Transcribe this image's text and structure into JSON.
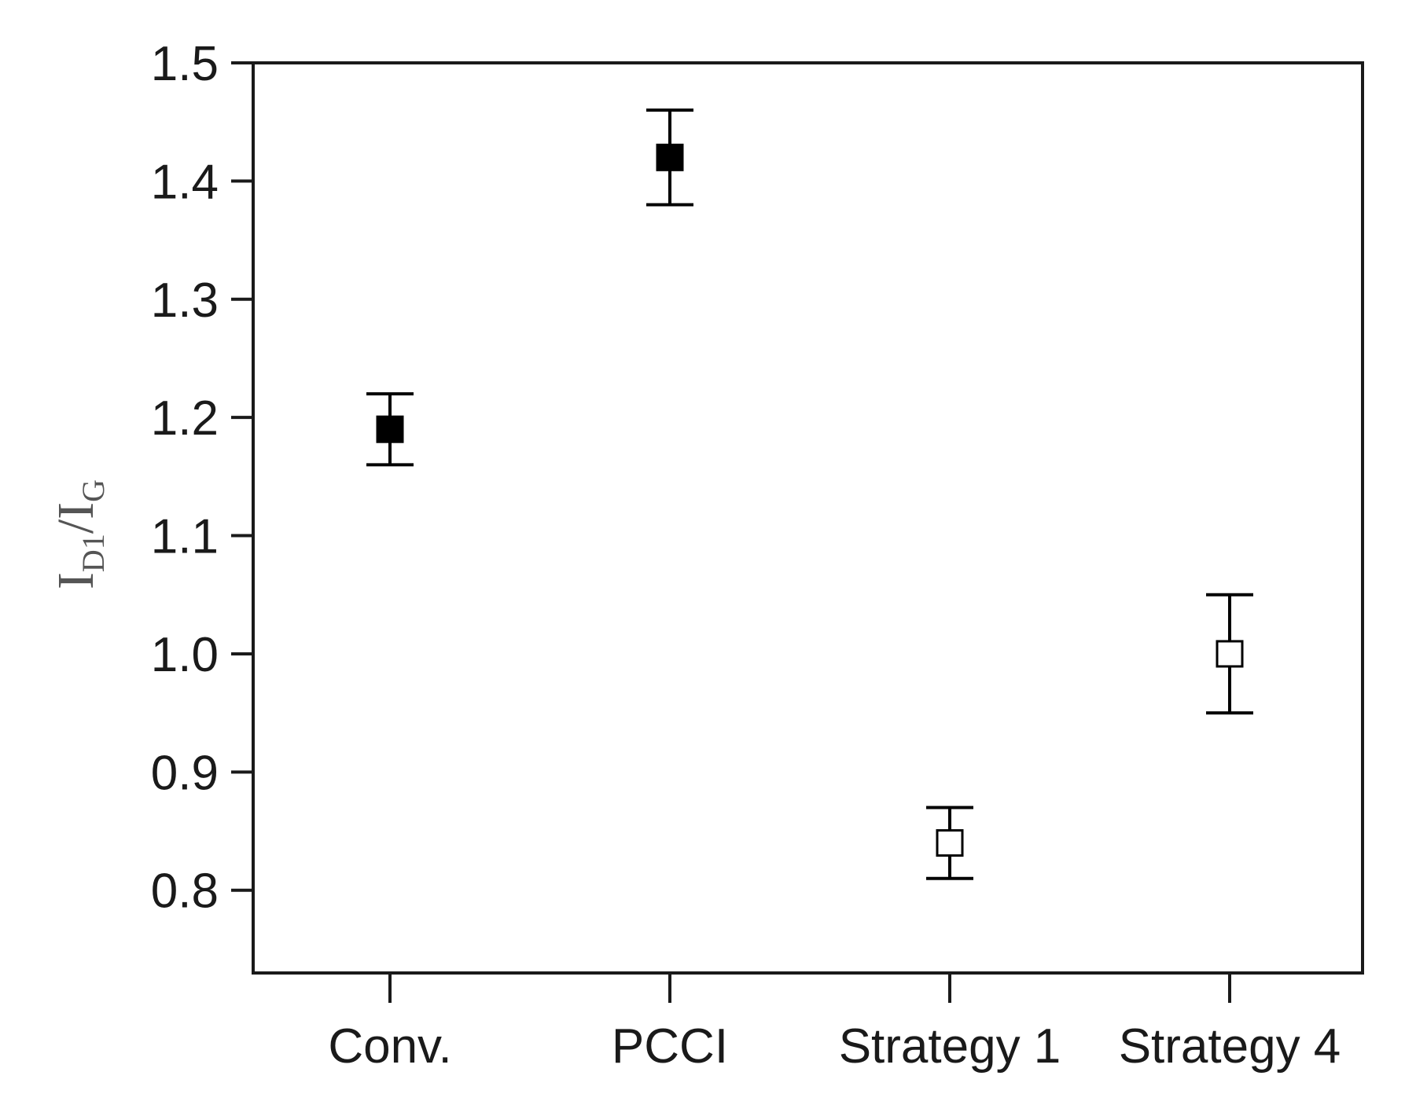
{
  "chart_data": {
    "type": "scatter",
    "title": "",
    "xlabel": "",
    "ylabel": {
      "main_1": "I",
      "sub_1": "D1",
      "separator": "/",
      "main_2": "I",
      "sub_2": "G"
    },
    "categories": [
      "Conv.",
      "PCCI",
      "Strategy 1",
      "Strategy 4"
    ],
    "ylim": [
      0.73,
      1.5
    ],
    "yticks": [
      "0.8",
      "0.9",
      "1.0",
      "1.1",
      "1.2",
      "1.3",
      "1.4",
      "1.5"
    ],
    "grid": false,
    "legend": "none",
    "points": [
      {
        "category": "Conv.",
        "y": 1.19,
        "err_low": 1.16,
        "err_high": 1.22,
        "marker": "filled-square"
      },
      {
        "category": "PCCI",
        "y": 1.42,
        "err_low": 1.38,
        "err_high": 1.46,
        "marker": "filled-square"
      },
      {
        "category": "Strategy 1",
        "y": 0.84,
        "err_low": 0.81,
        "err_high": 0.87,
        "marker": "open-square"
      },
      {
        "category": "Strategy 4",
        "y": 1.0,
        "err_low": 0.95,
        "err_high": 1.05,
        "marker": "open-square"
      }
    ],
    "colors": {
      "axis": "#1a1a1a",
      "marker": "#000000",
      "marker_open_fill": "#ffffff"
    }
  }
}
